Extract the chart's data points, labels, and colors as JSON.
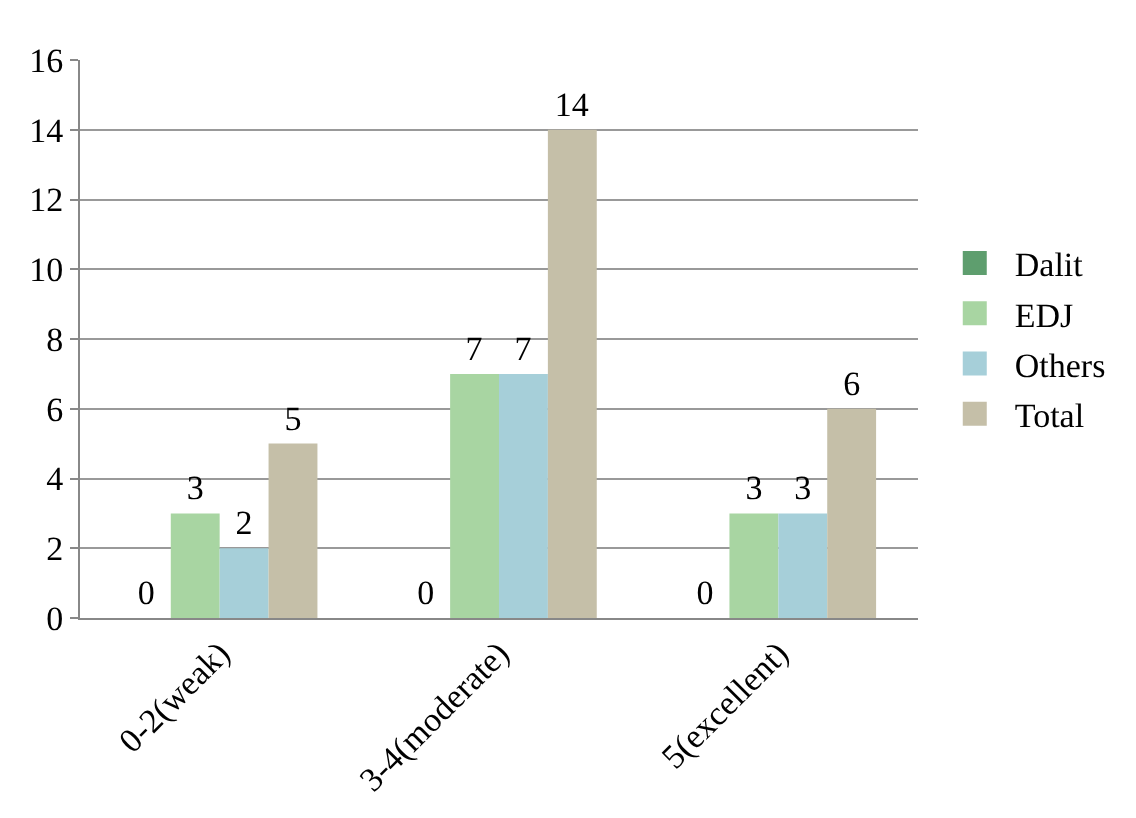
{
  "chart_data": {
    "type": "bar",
    "categories": [
      "0-2(weak)",
      "3-4(moderate)",
      "5(excellent)"
    ],
    "series": [
      {
        "name": "Dalit",
        "color": "#5e9e6e",
        "values": [
          0,
          0,
          0
        ]
      },
      {
        "name": "EDJ",
        "color": "#a8d5a2",
        "values": [
          3,
          7,
          3
        ]
      },
      {
        "name": "Others",
        "color": "#a6cfd9",
        "values": [
          2,
          7,
          3
        ]
      },
      {
        "name": "Total",
        "color": "#c5bfa8",
        "values": [
          5,
          14,
          6
        ]
      }
    ],
    "ylim": [
      0,
      16
    ],
    "yticks": [
      0,
      2,
      4,
      6,
      8,
      10,
      12,
      14,
      16
    ],
    "grid": "y",
    "legend": "right",
    "data_labels": true
  }
}
